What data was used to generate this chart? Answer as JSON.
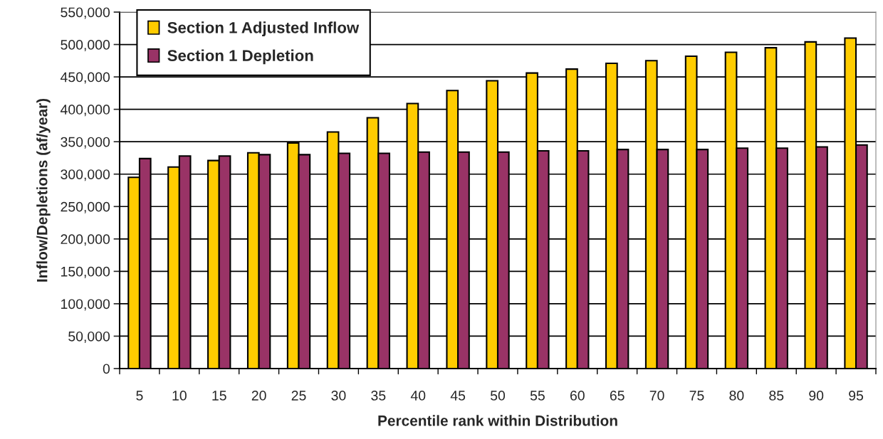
{
  "chart_data": {
    "type": "bar",
    "xlabel": "Percentile rank within Distribution",
    "ylabel": "Inflow/Depletions (af/year)",
    "categories": [
      "5",
      "10",
      "15",
      "20",
      "25",
      "30",
      "35",
      "40",
      "45",
      "50",
      "55",
      "60",
      "65",
      "70",
      "75",
      "80",
      "85",
      "90",
      "95"
    ],
    "series": [
      {
        "name": "Section 1 Adjusted Inflow",
        "color": "#ffcc00",
        "values": [
          295000,
          311000,
          321000,
          333000,
          348000,
          365000,
          387000,
          409000,
          429000,
          444000,
          456000,
          462000,
          471000,
          475000,
          482000,
          488000,
          495000,
          504000,
          510000
        ]
      },
      {
        "name": "Section 1 Depletion",
        "color": "#993366",
        "values": [
          324000,
          328000,
          328000,
          330000,
          330000,
          332000,
          332000,
          334000,
          334000,
          334000,
          336000,
          336000,
          338000,
          338000,
          338000,
          340000,
          340000,
          342000,
          345000
        ]
      }
    ],
    "ylim": [
      0,
      550000
    ],
    "yticks": [
      {
        "value": 0,
        "label": "0"
      },
      {
        "value": 50000,
        "label": "50,000"
      },
      {
        "value": 100000,
        "label": "100,000"
      },
      {
        "value": 150000,
        "label": "150,000"
      },
      {
        "value": 200000,
        "label": "200,000"
      },
      {
        "value": 250000,
        "label": "250,000"
      },
      {
        "value": 300000,
        "label": "300,000"
      },
      {
        "value": 350000,
        "label": "350,000"
      },
      {
        "value": 400000,
        "label": "400,000"
      },
      {
        "value": 450000,
        "label": "450,000"
      },
      {
        "value": 500000,
        "label": "500,000"
      },
      {
        "value": 550000,
        "label": "550,000"
      }
    ],
    "grid": "y",
    "legend": "top left"
  }
}
